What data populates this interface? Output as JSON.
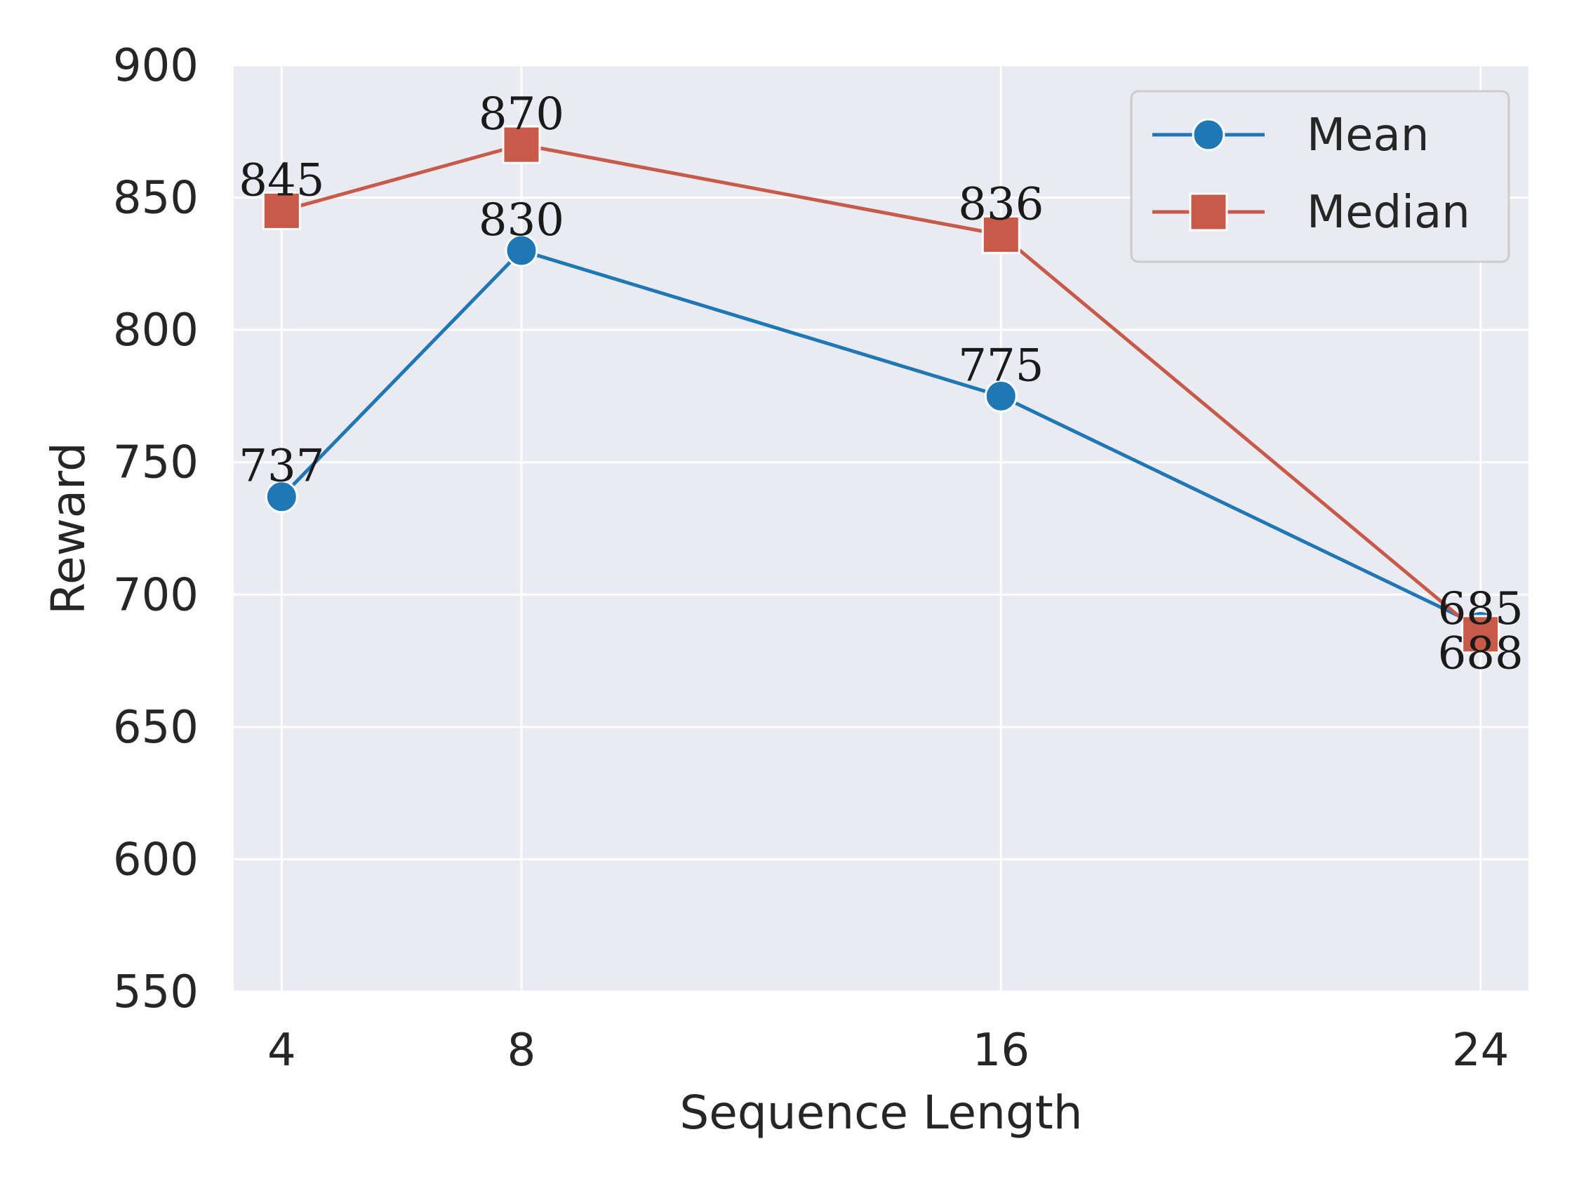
{
  "chart_data": {
    "type": "line",
    "title": "",
    "xlabel": "Sequence Length",
    "ylabel": "Reward",
    "x": [
      4,
      8,
      16,
      24
    ],
    "x_tick_labels": [
      "4",
      "8",
      "16",
      "24"
    ],
    "ylim": [
      550,
      900
    ],
    "y_ticks": [
      550,
      600,
      650,
      700,
      750,
      800,
      850,
      900
    ],
    "grid": true,
    "legend_position": "top-right",
    "background_color": "#eaeaf2",
    "series": [
      {
        "name": "Mean",
        "values": [
          737,
          830,
          775,
          688
        ],
        "color": "#1f77b4",
        "marker": "circle",
        "labels": [
          "737",
          "830",
          "775",
          "688"
        ]
      },
      {
        "name": "Median",
        "values": [
          845,
          870,
          836,
          685
        ],
        "color": "#c85a49",
        "marker": "square",
        "labels": [
          "845",
          "870",
          "836",
          "685"
        ]
      }
    ]
  }
}
